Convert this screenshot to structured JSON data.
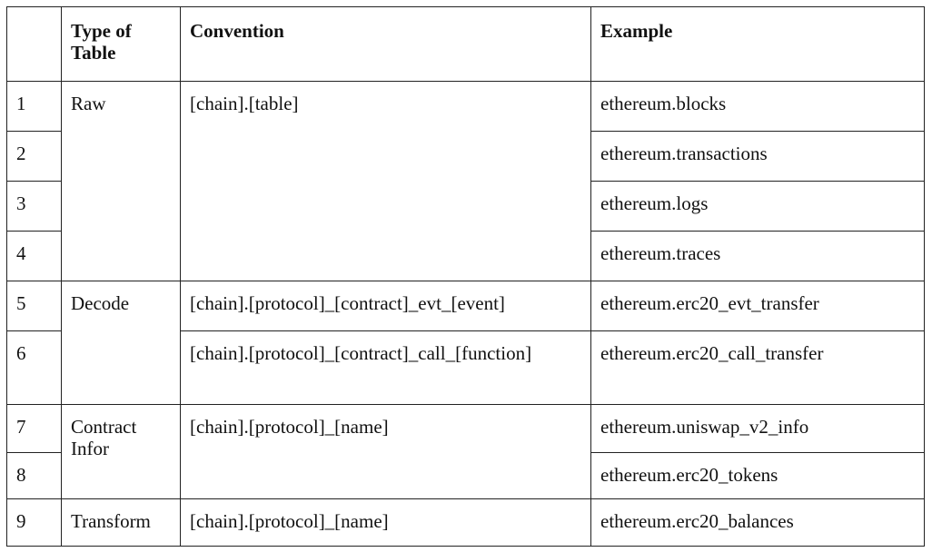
{
  "headers": {
    "num": "",
    "type": "Type of Table",
    "convention": "Convention",
    "example": "Example"
  },
  "rows": [
    {
      "num": "1",
      "type": "Raw",
      "convention": "[chain].[table]",
      "example": "ethereum.blocks"
    },
    {
      "num": "2",
      "example": "ethereum.transactions"
    },
    {
      "num": "3",
      "example": "ethereum.logs"
    },
    {
      "num": "4",
      "example": "ethereum.traces"
    },
    {
      "num": "5",
      "type": "Decode",
      "convention": "[chain].[protocol]_[contract]_evt_[event]",
      "example": "ethereum.erc20_evt_transfer"
    },
    {
      "num": "6",
      "convention": "[chain].[protocol]_[contract]_call_[function]",
      "example": "ethereum.erc20_call_transfer"
    },
    {
      "num": "7",
      "type": "Contract Infor",
      "convention": "[chain].[protocol]_[name]",
      "example": "ethereum.uniswap_v2_info"
    },
    {
      "num": "8",
      "example": "ethereum.erc20_tokens"
    },
    {
      "num": "9",
      "type": "Transform",
      "convention": "[chain].[protocol]_[name]",
      "example": "ethereum.erc20_balances"
    }
  ]
}
